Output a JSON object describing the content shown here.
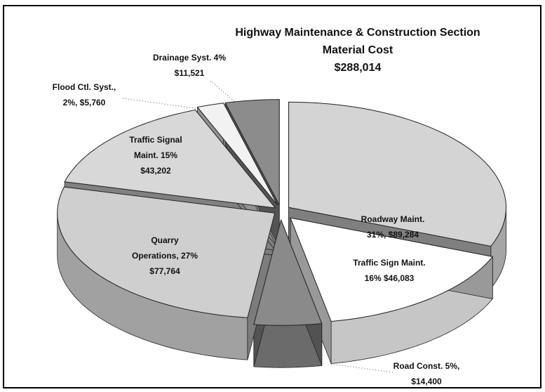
{
  "chart_data": {
    "type": "pie3d",
    "title": [
      "Highway Maintenance & Construction Section",
      "Material Cost",
      "$288,014"
    ],
    "values": [
      89284,
      46083,
      14400,
      77764,
      43202,
      5760,
      11521
    ],
    "value_labels": [
      [
        "Roadway Maint.",
        "31%, $89,284"
      ],
      [
        "Traffic Sign Maint.",
        "16% $46,083"
      ],
      [
        "Road Const. 5%,",
        "$14,400"
      ],
      [
        "Quarry",
        "Operations, 27%",
        "$77,764"
      ],
      [
        "Traffic Signal",
        "Maint. 15%",
        "$43,202"
      ],
      [
        "Flood Ctl. Syst.,",
        "2%, $5,760"
      ],
      [
        "Drainage Syst. 4%",
        "$11,521"
      ]
    ],
    "colors": [
      "#d4d4d4",
      "#ffffff",
      "#8a8a8a",
      "#cfcfcf",
      "#d8d8d8",
      "#f2f2f2",
      "#8c8c8c"
    ]
  }
}
